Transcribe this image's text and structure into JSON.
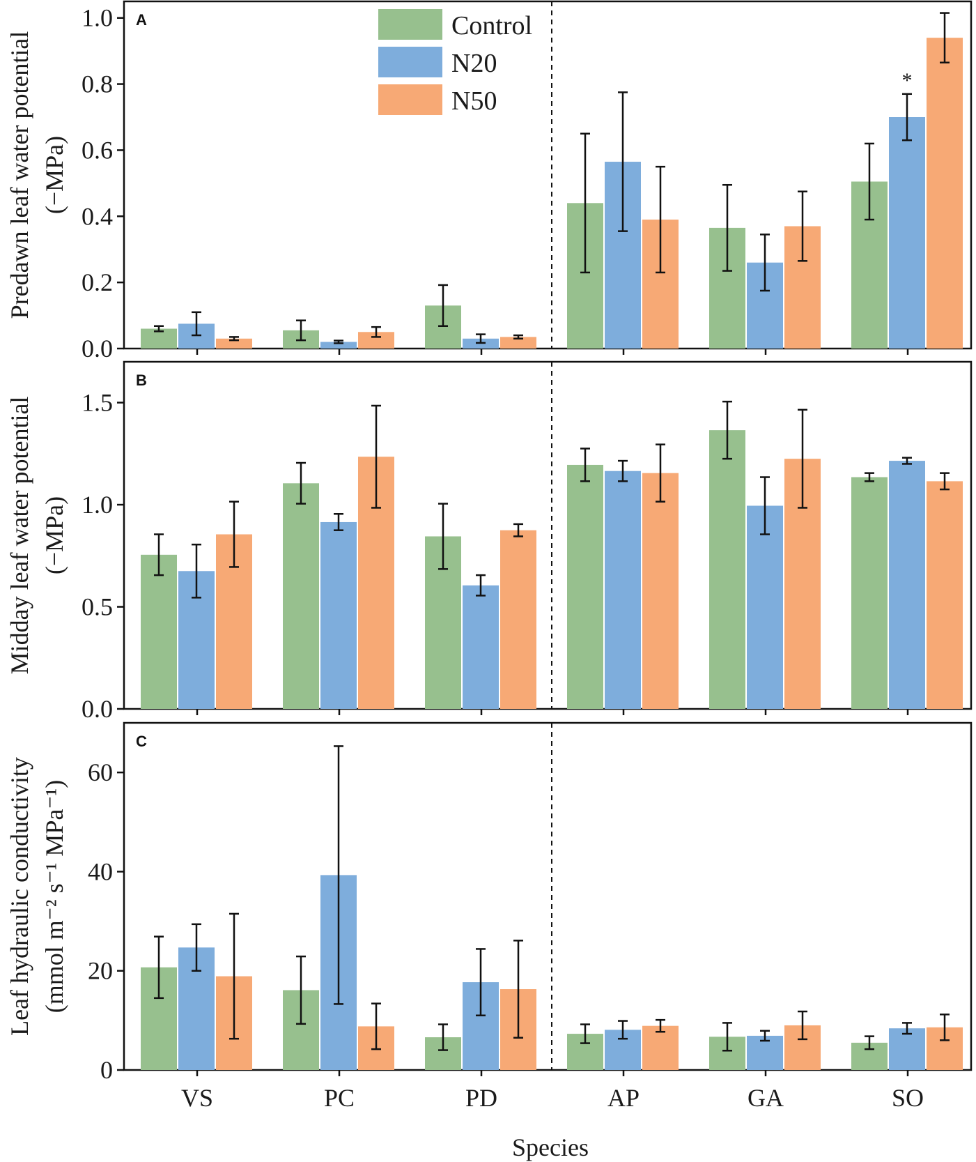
{
  "colors": {
    "Control": "#97c08e",
    "N20": "#7eaddc",
    "N50": "#f7a975",
    "ink": "#111111"
  },
  "legend": [
    {
      "label": "Control",
      "color_key": "Control"
    },
    {
      "label": "N20",
      "color_key": "N20"
    },
    {
      "label": "N50",
      "color_key": "N50"
    }
  ],
  "x_axis_title": "Species",
  "chart_data": [
    {
      "type": "bar",
      "panel": "A",
      "ylabel_line1": "Predawn leaf water potential",
      "ylabel_line2": "(−MPa)",
      "ylim": [
        0,
        1.05
      ],
      "yticks": [
        "0.0",
        "0.2",
        "0.4",
        "0.6",
        "0.8",
        "1.0"
      ],
      "categories": [
        "VS",
        "PC",
        "PD",
        "AP",
        "GA",
        "SO"
      ],
      "series": [
        {
          "name": "Control",
          "values": [
            0.06,
            0.055,
            0.13,
            0.44,
            0.365,
            0.505
          ],
          "errors": [
            0.008,
            0.03,
            0.062,
            0.21,
            0.13,
            0.115
          ]
        },
        {
          "name": "N20",
          "values": [
            0.075,
            0.02,
            0.03,
            0.565,
            0.26,
            0.7
          ],
          "errors": [
            0.035,
            0.004,
            0.013,
            0.21,
            0.085,
            0.07
          ]
        },
        {
          "name": "N50",
          "values": [
            0.03,
            0.05,
            0.035,
            0.39,
            0.37,
            0.94
          ],
          "errors": [
            0.005,
            0.015,
            0.005,
            0.16,
            0.105,
            0.075
          ]
        }
      ],
      "annotations": [
        {
          "text": "*",
          "category": "SO",
          "series": "N20"
        }
      ]
    },
    {
      "type": "bar",
      "panel": "B",
      "ylabel_line1": "Midday leaf water potential",
      "ylabel_line2": "(−MPa)",
      "ylim": [
        0,
        1.7
      ],
      "yticks": [
        "0.0",
        "0.5",
        "1.0",
        "1.5"
      ],
      "categories": [
        "VS",
        "PC",
        "PD",
        "AP",
        "GA",
        "SO"
      ],
      "series": [
        {
          "name": "Control",
          "values": [
            0.755,
            1.105,
            0.845,
            1.195,
            1.365,
            1.135
          ],
          "errors": [
            0.1,
            0.1,
            0.16,
            0.08,
            0.14,
            0.02
          ]
        },
        {
          "name": "N20",
          "values": [
            0.675,
            0.915,
            0.605,
            1.165,
            0.995,
            1.215
          ],
          "errors": [
            0.13,
            0.04,
            0.05,
            0.05,
            0.14,
            0.015
          ]
        },
        {
          "name": "N50",
          "values": [
            0.855,
            1.235,
            0.875,
            1.155,
            1.225,
            1.115
          ],
          "errors": [
            0.16,
            0.25,
            0.03,
            0.14,
            0.24,
            0.04
          ]
        }
      ],
      "annotations": []
    },
    {
      "type": "bar",
      "panel": "C",
      "ylabel_line1": "Leaf hydraulic conductivity",
      "ylabel_line2": "(mmol m⁻² s⁻¹ MPa⁻¹)",
      "ylim": [
        0,
        70
      ],
      "yticks": [
        "0",
        "20",
        "40",
        "60"
      ],
      "categories": [
        "VS",
        "PC",
        "PD",
        "AP",
        "GA",
        "SO"
      ],
      "series": [
        {
          "name": "Control",
          "values": [
            20.7,
            16.1,
            6.6,
            7.3,
            6.7,
            5.5
          ],
          "errors": [
            6.2,
            6.8,
            2.6,
            1.9,
            2.8,
            1.3
          ]
        },
        {
          "name": "N20",
          "values": [
            24.7,
            39.3,
            17.7,
            8.1,
            6.9,
            8.4
          ],
          "errors": [
            4.7,
            26.0,
            6.7,
            1.8,
            1.0,
            1.1
          ]
        },
        {
          "name": "N50",
          "values": [
            18.9,
            8.8,
            16.3,
            8.9,
            9.0,
            8.6
          ],
          "errors": [
            12.6,
            4.6,
            9.8,
            1.2,
            2.8,
            2.6
          ]
        }
      ],
      "annotations": []
    }
  ]
}
